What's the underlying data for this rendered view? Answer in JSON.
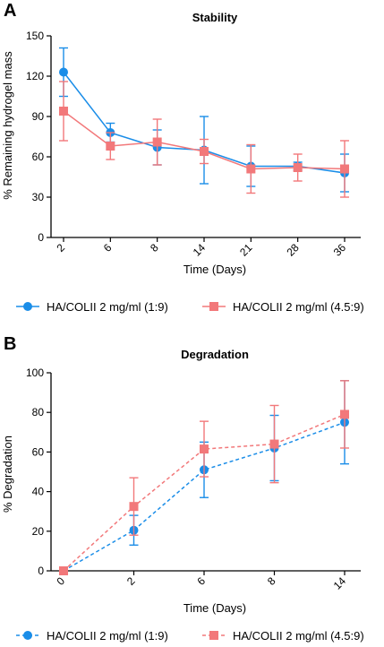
{
  "figure": {
    "panels": [
      "A",
      "B"
    ]
  },
  "colors": {
    "series1": "#1a8de8",
    "series2": "#f2787a"
  },
  "chart_data": [
    {
      "type": "line",
      "panel": "A",
      "title": "Stability",
      "xlabel": "Time (Days)",
      "ylabel": "% Remaining hydrogel mass",
      "categories": [
        "2",
        "6",
        "8",
        "14",
        "21",
        "28",
        "36"
      ],
      "ylim": [
        0,
        150
      ],
      "yticks": [
        0,
        30,
        60,
        90,
        120,
        150
      ],
      "grid": false,
      "legend_position": "bottom",
      "series": [
        {
          "name": "HA/COLII 2 mg/ml (1:9)",
          "marker": "circle",
          "line_style": "solid",
          "values": [
            123,
            78,
            67,
            65,
            53,
            53,
            48
          ],
          "error": [
            18,
            7,
            13,
            25,
            15,
            3,
            14
          ]
        },
        {
          "name": "HA/COLII 2 mg/ml (4.5:9)",
          "marker": "square",
          "line_style": "solid",
          "values": [
            94,
            68,
            71,
            64,
            51,
            52,
            51
          ],
          "error": [
            22,
            10,
            17,
            9,
            18,
            10,
            21
          ]
        }
      ]
    },
    {
      "type": "line",
      "panel": "B",
      "title": "Degradation",
      "xlabel": "Time (Days)",
      "ylabel": "% Degradation",
      "categories": [
        "0",
        "2",
        "6",
        "8",
        "14"
      ],
      "ylim": [
        0,
        100
      ],
      "yticks": [
        0,
        20,
        40,
        60,
        80,
        100
      ],
      "grid": false,
      "legend_position": "bottom",
      "series": [
        {
          "name": "HA/COLII 2 mg/ml (1:9)",
          "marker": "circle",
          "line_style": "dashed",
          "values": [
            0,
            20.5,
            51,
            62,
            75
          ],
          "error": [
            0,
            7.5,
            14,
            16.5,
            21
          ]
        },
        {
          "name": "HA/COLII 2 mg/ml (4.5:9)",
          "marker": "square",
          "line_style": "dashed",
          "values": [
            0,
            32.5,
            61.5,
            64,
            79
          ],
          "error": [
            0,
            14.5,
            14,
            19.5,
            17
          ]
        }
      ]
    }
  ]
}
